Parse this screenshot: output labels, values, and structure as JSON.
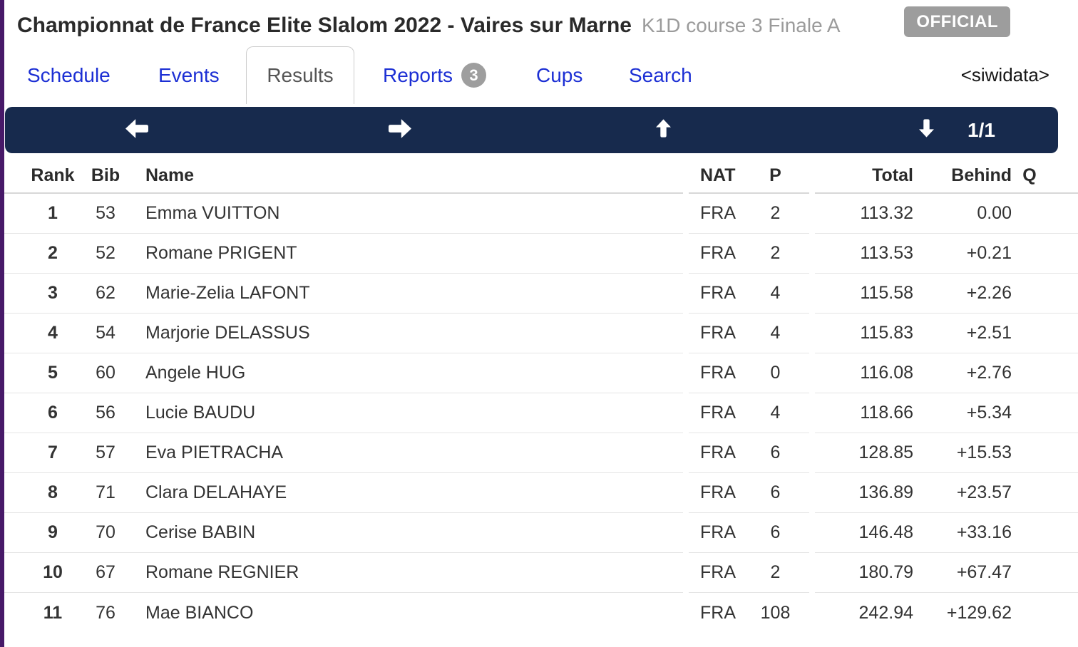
{
  "header": {
    "title": "Championnat de France Elite Slalom 2022 - Vaires sur Marne",
    "subtitle": "K1D course 3 Finale A",
    "official_badge": "OFFICIAL"
  },
  "nav": {
    "tabs": [
      {
        "label": "Schedule"
      },
      {
        "label": "Events"
      },
      {
        "label": "Results",
        "active": true
      },
      {
        "label": "Reports",
        "badge": "3"
      },
      {
        "label": "Cups"
      },
      {
        "label": "Search"
      }
    ],
    "brand": "<siwidata>"
  },
  "toolbar": {
    "icons": [
      "arrow-left",
      "arrow-right",
      "arrow-up",
      "arrow-down"
    ],
    "page_indicator": "1/1"
  },
  "table": {
    "columns": [
      "Rank",
      "Bib",
      "Name",
      "NAT",
      "P",
      "Total",
      "Behind",
      "Q"
    ],
    "rows": [
      {
        "rank": "1",
        "bib": "53",
        "name": "Emma VUITTON",
        "nat": "FRA",
        "p": "2",
        "total": "113.32",
        "behind": "0.00",
        "q": ""
      },
      {
        "rank": "2",
        "bib": "52",
        "name": "Romane PRIGENT",
        "nat": "FRA",
        "p": "2",
        "total": "113.53",
        "behind": "+0.21",
        "q": ""
      },
      {
        "rank": "3",
        "bib": "62",
        "name": "Marie-Zelia LAFONT",
        "nat": "FRA",
        "p": "4",
        "total": "115.58",
        "behind": "+2.26",
        "q": ""
      },
      {
        "rank": "4",
        "bib": "54",
        "name": "Marjorie DELASSUS",
        "nat": "FRA",
        "p": "4",
        "total": "115.83",
        "behind": "+2.51",
        "q": ""
      },
      {
        "rank": "5",
        "bib": "60",
        "name": "Angele HUG",
        "nat": "FRA",
        "p": "0",
        "total": "116.08",
        "behind": "+2.76",
        "q": ""
      },
      {
        "rank": "6",
        "bib": "56",
        "name": "Lucie BAUDU",
        "nat": "FRA",
        "p": "4",
        "total": "118.66",
        "behind": "+5.34",
        "q": ""
      },
      {
        "rank": "7",
        "bib": "57",
        "name": "Eva PIETRACHA",
        "nat": "FRA",
        "p": "6",
        "total": "128.85",
        "behind": "+15.53",
        "q": ""
      },
      {
        "rank": "8",
        "bib": "71",
        "name": "Clara DELAHAYE",
        "nat": "FRA",
        "p": "6",
        "total": "136.89",
        "behind": "+23.57",
        "q": ""
      },
      {
        "rank": "9",
        "bib": "70",
        "name": "Cerise BABIN",
        "nat": "FRA",
        "p": "6",
        "total": "146.48",
        "behind": "+33.16",
        "q": ""
      },
      {
        "rank": "10",
        "bib": "67",
        "name": "Romane REGNIER",
        "nat": "FRA",
        "p": "2",
        "total": "180.79",
        "behind": "+67.47",
        "q": ""
      },
      {
        "rank": "11",
        "bib": "76",
        "name": "Mae BIANCO",
        "nat": "FRA",
        "p": "108",
        "total": "242.94",
        "behind": "+129.62",
        "q": ""
      }
    ]
  },
  "colors": {
    "accent_stripe": "#471968",
    "toolbar_bg": "#172a4d",
    "link_blue": "#1c2fd4",
    "badge_gray": "#9e9e9e"
  }
}
